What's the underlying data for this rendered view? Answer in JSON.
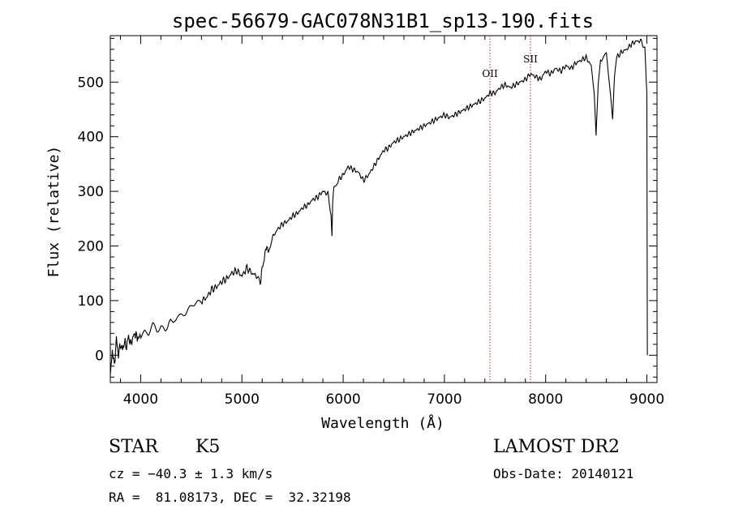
{
  "chart_data": {
    "type": "line",
    "title": "spec-56679-GAC078N31B1_sp13-190.fits",
    "xlabel": "Wavelength (Å)",
    "ylabel": "Flux (relative)",
    "xlim": [
      3700,
      9100
    ],
    "ylim": [
      -50,
      585
    ],
    "xticks": [
      4000,
      5000,
      6000,
      7000,
      8000,
      9000
    ],
    "yticks": [
      0,
      100,
      200,
      300,
      400,
      500
    ],
    "grid": false,
    "series": [
      {
        "color": "#000000",
        "x": [
          3700,
          3720,
          3740,
          3760,
          3780,
          3800,
          3820,
          3840,
          3860,
          3880,
          3900,
          3920,
          3940,
          3960,
          3980,
          4000,
          4040,
          4080,
          4120,
          4160,
          4200,
          4240,
          4280,
          4320,
          4360,
          4400,
          4440,
          4480,
          4520,
          4560,
          4600,
          4650,
          4700,
          4750,
          4800,
          4850,
          4900,
          4950,
          5000,
          5050,
          5100,
          5150,
          5180,
          5200,
          5220,
          5240,
          5260,
          5300,
          5350,
          5400,
          5450,
          5500,
          5550,
          5600,
          5650,
          5700,
          5750,
          5800,
          5850,
          5880,
          5890,
          5896,
          5910,
          5950,
          6000,
          6050,
          6100,
          6150,
          6200,
          6250,
          6300,
          6350,
          6400,
          6450,
          6500,
          6550,
          6600,
          6650,
          6700,
          6750,
          6800,
          6850,
          6900,
          6950,
          7000,
          7050,
          7100,
          7150,
          7200,
          7250,
          7300,
          7350,
          7400,
          7450,
          7500,
          7550,
          7600,
          7650,
          7700,
          7750,
          7800,
          7850,
          7900,
          7950,
          8000,
          8050,
          8100,
          8150,
          8200,
          8250,
          8300,
          8350,
          8400,
          8450,
          8480,
          8498,
          8520,
          8542,
          8560,
          8600,
          8640,
          8662,
          8680,
          8700,
          8750,
          8800,
          8850,
          8900,
          8950,
          8980,
          9000,
          9003,
          9005
        ],
        "values": [
          -40,
          10,
          -20,
          30,
          0,
          20,
          10,
          25,
          15,
          35,
          20,
          30,
          40,
          35,
          30,
          40,
          45,
          40,
          50,
          45,
          55,
          50,
          60,
          55,
          70,
          75,
          80,
          85,
          90,
          95,
          100,
          105,
          120,
          125,
          135,
          140,
          150,
          155,
          145,
          160,
          150,
          145,
          130,
          160,
          175,
          200,
          190,
          215,
          230,
          240,
          245,
          255,
          260,
          270,
          275,
          285,
          290,
          300,
          295,
          260,
          220,
          280,
          310,
          320,
          330,
          345,
          340,
          335,
          320,
          330,
          345,
          360,
          375,
          380,
          390,
          395,
          400,
          405,
          410,
          415,
          420,
          425,
          430,
          435,
          440,
          435,
          440,
          445,
          450,
          455,
          460,
          465,
          470,
          480,
          480,
          490,
          495,
          490,
          495,
          500,
          505,
          515,
          510,
          505,
          520,
          515,
          525,
          520,
          530,
          525,
          535,
          540,
          545,
          530,
          480,
          400,
          500,
          545,
          540,
          550,
          480,
          430,
          510,
          545,
          555,
          560,
          570,
          575,
          575,
          560,
          480,
          150,
          0
        ]
      }
    ],
    "annotations": [
      {
        "label": "OII",
        "x": 7450
      },
      {
        "label": "SII",
        "x": 7850
      }
    ]
  },
  "info": {
    "object_type": "STAR",
    "subclass": "K5",
    "survey": "LAMOST DR2",
    "cz": "cz = −40.3 ± 1.3 km/s",
    "obs_date": "Obs-Date: 20140121",
    "coords": "RA =  81.08173, DEC =  32.32198"
  }
}
